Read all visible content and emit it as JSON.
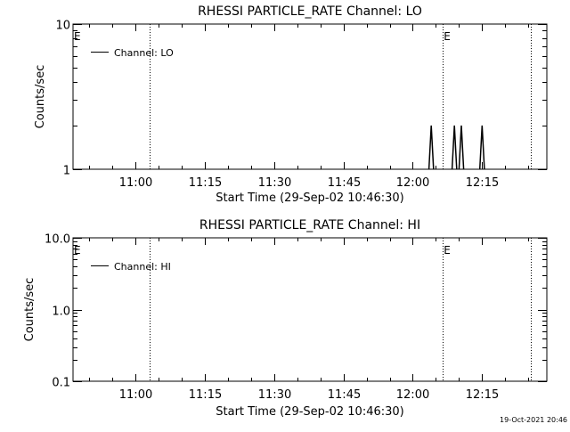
{
  "chart_data": [
    {
      "type": "line",
      "title": "RHESSI PARTICLE_RATE Channel: LO",
      "xlabel": "Start Time (29-Sep-02 10:46:30)",
      "ylabel": "Counts/sec",
      "y_scale": "log",
      "ylim": [
        1,
        10
      ],
      "y_ticks": [
        {
          "value": 1,
          "label": "1"
        },
        {
          "value": 10,
          "label": "10"
        }
      ],
      "x_ticks": [
        "11:00",
        "11:15",
        "11:30",
        "11:45",
        "12:00",
        "12:15"
      ],
      "legend": {
        "label": "Channel: LO",
        "position": "top-left"
      },
      "event_markers": [
        {
          "time": "10:46:30",
          "label": "E"
        },
        {
          "time": "12:06:30",
          "label": "E"
        }
      ],
      "dotted_lines": [
        "11:03:00",
        "12:06:30",
        "12:25:30"
      ],
      "series": [
        {
          "name": "Channel: LO",
          "points": [
            {
              "x": "12:03:30",
              "y": 1
            },
            {
              "x": "12:04:00",
              "y": 2
            },
            {
              "x": "12:04:30",
              "y": 1
            },
            {
              "x": "12:08:30",
              "y": 1
            },
            {
              "x": "12:09:00",
              "y": 2
            },
            {
              "x": "12:09:30",
              "y": 1
            },
            {
              "x": "12:10:00",
              "y": 1
            },
            {
              "x": "12:10:30",
              "y": 2
            },
            {
              "x": "12:11:00",
              "y": 1
            },
            {
              "x": "12:14:30",
              "y": 1
            },
            {
              "x": "12:15:00",
              "y": 2
            },
            {
              "x": "12:15:30",
              "y": 1
            }
          ]
        }
      ]
    },
    {
      "type": "line",
      "title": "RHESSI PARTICLE_RATE Channel: HI",
      "xlabel": "Start Time (29-Sep-02 10:46:30)",
      "ylabel": "Counts/sec",
      "y_scale": "log",
      "ylim": [
        0.1,
        10
      ],
      "y_ticks": [
        {
          "value": 0.1,
          "label": "0.1"
        },
        {
          "value": 1,
          "label": "1.0"
        },
        {
          "value": 10,
          "label": "10.0"
        }
      ],
      "x_ticks": [
        "11:00",
        "11:15",
        "11:30",
        "11:45",
        "12:00",
        "12:15"
      ],
      "legend": {
        "label": "Channel: HI",
        "position": "top-left"
      },
      "event_markers": [
        {
          "time": "10:46:30",
          "label": "E"
        },
        {
          "time": "12:06:30",
          "label": "E"
        }
      ],
      "dotted_lines": [
        "11:03:00",
        "12:06:30",
        "12:25:30"
      ],
      "series": [
        {
          "name": "Channel: HI",
          "points": []
        }
      ]
    }
  ],
  "footer": {
    "timestamp": "19-Oct-2021 20:46"
  }
}
